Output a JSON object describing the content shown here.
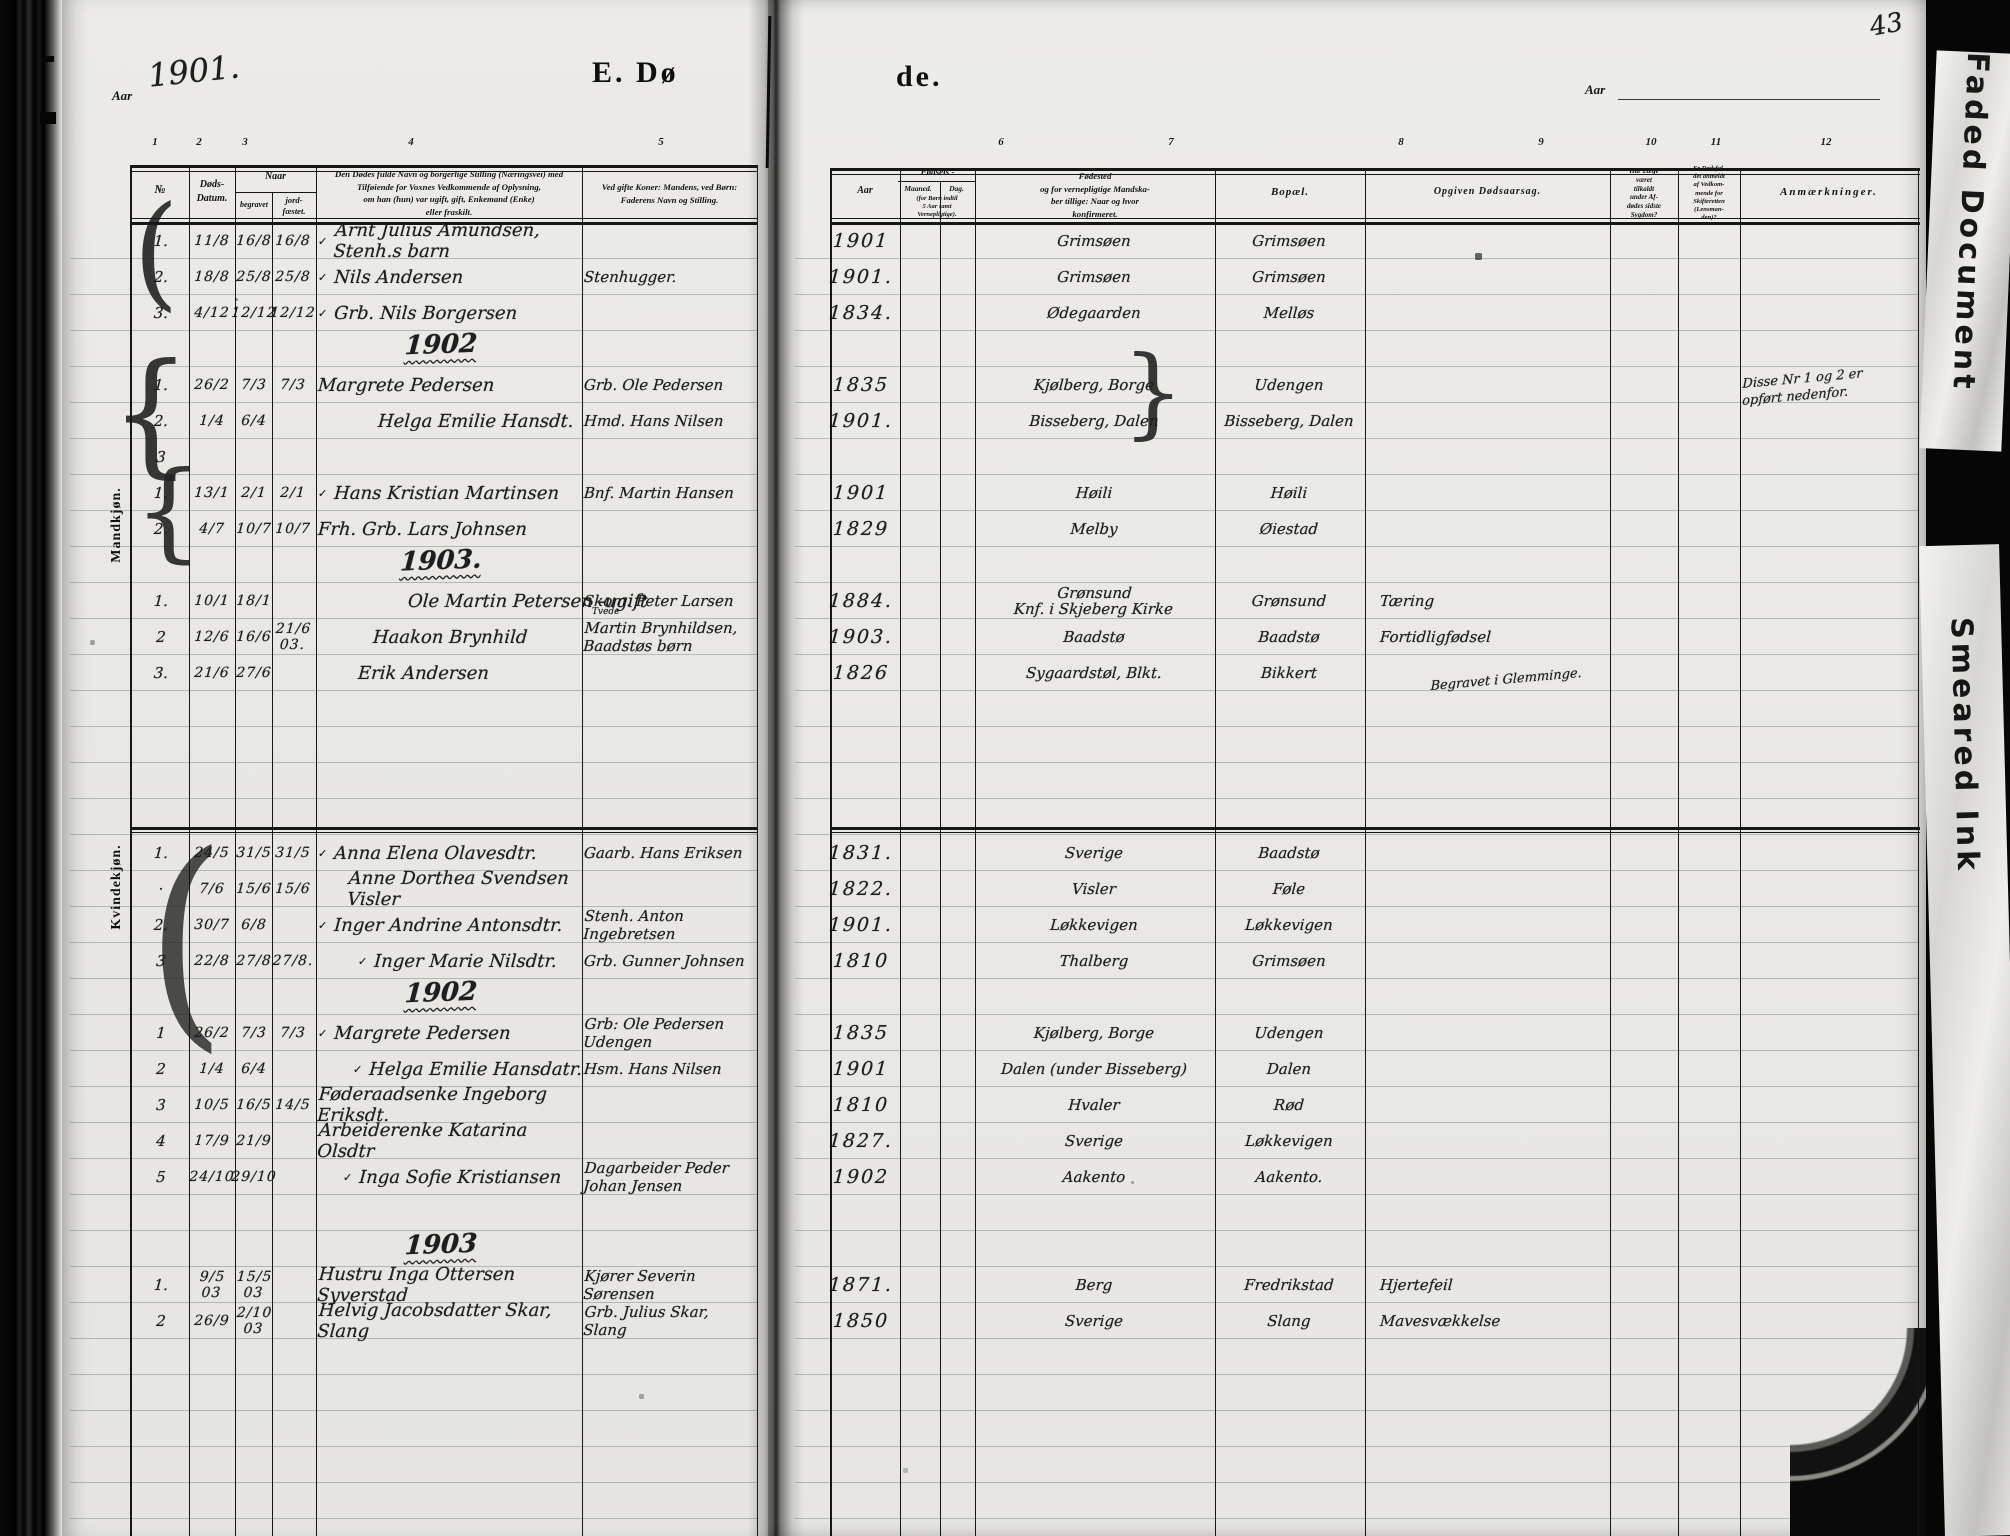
{
  "top": {
    "aar_printed_left": "Aar",
    "year_handwritten": "1901.",
    "title_left": "E. Dø",
    "title_right": "de.",
    "aar_printed_right": "Aar",
    "page_number": "43"
  },
  "column_numbers": [
    "1",
    "2",
    "3",
    "4",
    "5",
    "6",
    "7",
    "8",
    "9",
    "10",
    "11",
    "12"
  ],
  "headers": {
    "nr": "№",
    "dods": "Døds-\nDatum.",
    "naar": "Naar",
    "begravet": "begravet",
    "jordfaestet": "jord-\nfæstet.",
    "col4": "Den Dødes fulde Navn og borgerlige Stilling (Næringsvei) med\nTilføiende for Voxnes Vedkommende af Oplysning,\nom han (hun) var ugift, gift, Enkemand (Enke)\neller fraskilt.",
    "col5": "Ved gifte Koner: Mandens, ved Børn:\nFaderens Navn og Stilling.",
    "aar": "Aar",
    "fodsels": "Fødsels -",
    "maaned": "Maaned.",
    "dag": "Dag.",
    "forborn": "(for Børn indtil\n5 Aar samt\nVernepligtige).",
    "col7": "Fødested\nog for vernepligtige Mandska-\nber tillige: Naar og hvor\nkonfirmeret.",
    "col8": "Bopæl.",
    "col9": "Opgiven Dødsaarsag.",
    "col10": "Har Læge\nværet\ntilkaldt\nunder Af-\ndødes sidste\nSygdom?",
    "col11": "Er Dødsfal-\ndet anmeldt\naf Vedkom-\nmende for\nSkifteretten\n(Lensman-\nden)?",
    "col12": "Anmærkninger."
  },
  "sections": {
    "male": "Mandkjøn.",
    "female": "Kvindekjøn."
  },
  "marks": {
    "check": "✓"
  },
  "overlays": {
    "strip_top": "Faded Document",
    "strip_bottom": "Smeared Ink"
  },
  "rows": [
    {
      "t": "e",
      "nr": "1.",
      "dat": "11/8",
      "beg": "16/8",
      "jor": "16/8",
      "chk": true,
      "nav": "Arnt Julius Amundsen, Stenh.s barn",
      "aar": "1901",
      "sted": "Grimsøen",
      "bop": "Grimsøen"
    },
    {
      "t": "e",
      "nr": "2.",
      "dat": "18/8",
      "beg": "25/8",
      "jor": "25/8",
      "chk": true,
      "nav": "Nils Andersen",
      "rel": "Stenhugger.",
      "aar": "1901.",
      "sted": "Grimsøen",
      "bop": "Grimsøen"
    },
    {
      "t": "e",
      "nr": "3.",
      "dat": "4/12",
      "beg": "12/12",
      "jor": "12/12",
      "chk": true,
      "nav": "Grb. Nils Borgersen",
      "aar": "1834.",
      "sted": "Ødegaarden",
      "bop": "Melløs"
    },
    {
      "t": "h",
      "hed": "1902"
    },
    {
      "t": "e",
      "nr": "1.",
      "dat": "26/2",
      "beg": "7/3",
      "jor": "7/3",
      "nav": "Margrete Pedersen",
      "rel": "Grb. Ole Pedersen",
      "aar": "1835",
      "sted": "Kjølberg, Borge",
      "bop": "Udengen",
      "anm": "Disse Nr 1 og 2 er\nopført nedenfor."
    },
    {
      "t": "e",
      "nr": "2.",
      "dat": "1/4",
      "beg": "6/4",
      "ind": 60,
      "nav": "Helga Emilie Hansdt.",
      "rel": "Hmd. Hans Nilsen",
      "aar": "1901.",
      "sted": "Bisseberg, Dalen",
      "bop": "Bisseberg, Dalen"
    },
    {
      "t": "e",
      "nr": "3"
    },
    {
      "t": "e",
      "nr": "1.",
      "dat": "13/1",
      "beg": "2/1",
      "jor": "2/1",
      "chk": true,
      "nav": "Hans Kristian Martinsen",
      "rel": "Bnf. Martin Hansen",
      "aar": "1901",
      "sted": "Høili",
      "bop": "Høili"
    },
    {
      "t": "e",
      "nr": "2.",
      "dat": "4/7",
      "beg": "10/7",
      "jor": "10/7",
      "nav": "Frh. Grb. Lars Johnsen",
      "aar": "1829",
      "sted": "Melby",
      "bop": "Øiestad"
    },
    {
      "t": "h",
      "hed": "1903."
    },
    {
      "t": "e",
      "nr": "1.",
      "dat": "10/1",
      "beg": "18/1",
      "ind": 90,
      "nav": "Ole Martin Petersen  -ugift",
      "rel": "Skom. Peter Larsen",
      "note": "Tvede",
      "aar": "1884.",
      "sted": "Grønsund\nKnf. i Skjeberg Kirke",
      "bop": "Grønsund",
      "cau": "Tæring"
    },
    {
      "t": "e",
      "nr": "2",
      "dat": "12/6",
      "beg": "16/6",
      "jor": "21/6 03.",
      "ind": 55,
      "nav": "Haakon Brynhild",
      "rel": "Martin Brynhildsen, Baadstøs børn",
      "aar": "1903.",
      "sted": "Baadstø",
      "bop": "Baadstø",
      "cau": "Fortidligfødsel"
    },
    {
      "t": "e",
      "nr": "3.",
      "dat": "21/6",
      "beg": "27/6",
      "ind": 40,
      "nav": "Erik Andersen",
      "aar": "1826",
      "sted": "Sygaardstøl, Blkt.",
      "bop": "Bikkert",
      "anm": "Begravet i Glemminge."
    },
    {
      "t": "b"
    },
    {
      "t": "b"
    },
    {
      "t": "b"
    },
    {
      "t": "b"
    },
    {
      "t": "e",
      "nr": "1.",
      "dat": "24/5",
      "beg": "31/5",
      "jor": "31/5",
      "chk": true,
      "nav": "Anna Elena Olavesdtr.",
      "rel": "Gaarb. Hans Eriksen",
      "aar": "1831.",
      "sted": "Sverige",
      "bop": "Baadstø"
    },
    {
      "t": "e",
      "nr": "·",
      "dat": "7/6",
      "beg": "15/6",
      "jor": "15/6",
      "ind": 30,
      "nav": "Anne Dorthea Svendsen Visler",
      "aar": "1822.",
      "sted": "Visler",
      "bop": "Føle"
    },
    {
      "t": "e",
      "nr": "2.",
      "dat": "30/7",
      "beg": "6/8",
      "chk": true,
      "nav": "Inger Andrine Antonsdtr.",
      "rel": "Stenh. Anton Ingebretsen",
      "aar": "1901.",
      "sted": "Løkkevigen",
      "bop": "Løkkevigen"
    },
    {
      "t": "e",
      "nr": "3",
      "dat": "22/8",
      "beg": "27/8",
      "jor": "27/8.",
      "chk": true,
      "ind": 40,
      "nav": "Inger Marie Nilsdtr.",
      "rel": "Grb. Gunner Johnsen",
      "aar": "1810",
      "sted": "Thalberg",
      "bop": "Grimsøen"
    },
    {
      "t": "h",
      "hed": "1902"
    },
    {
      "t": "e",
      "nr": "1",
      "dat": "26/2",
      "beg": "7/3",
      "jor": "7/3",
      "chk": true,
      "nav": "Margrete Pedersen",
      "rel": "Grb: Ole Pedersen Udengen",
      "aar": "1835",
      "sted": "Kjølberg, Borge",
      "bop": "Udengen"
    },
    {
      "t": "e",
      "nr": "2",
      "dat": "1/4",
      "beg": "6/4",
      "chk": true,
      "ind": 35,
      "nav": "Helga Emilie Hansdatr.",
      "rel": "Hsm. Hans Nilsen",
      "aar": "1901",
      "sted": "Dalen (under Bisseberg)",
      "bop": "Dalen"
    },
    {
      "t": "e",
      "nr": "3",
      "dat": "10/5",
      "beg": "16/5",
      "jor": "14/5",
      "nav": "Føderaadsenke Ingeborg Eriksdt.",
      "aar": "1810",
      "sted": "Hvaler",
      "bop": "Rød"
    },
    {
      "t": "e",
      "nr": "4",
      "dat": "17/9",
      "beg": "21/9",
      "nav": "Arbeiderenke Katarina Olsdtr",
      "aar": "1827.",
      "sted": "Sverige",
      "bop": "Løkkevigen"
    },
    {
      "t": "e",
      "nr": "5",
      "dat": "24/10",
      "beg": "29/10",
      "chk": true,
      "ind": 25,
      "nav": "Inga Sofie Kristiansen",
      "rel": "Dagarbeider Peder Johan Jensen",
      "aar": "1902",
      "sted": "Aakento",
      "bop": "Aakento."
    },
    {
      "t": "b"
    },
    {
      "t": "h",
      "hed": "1903"
    },
    {
      "t": "e",
      "nr": "1.",
      "dat": "9/5 03",
      "beg": "15/5 03",
      "nav": "Hustru Inga Ottersen Syverstad",
      "rel": "Kjører Severin Sørensen",
      "aar": "1871.",
      "sted": "Berg",
      "bop": "Fredrikstad",
      "cau": "Hjertefeil"
    },
    {
      "t": "e",
      "nr": "2",
      "dat": "26/9",
      "beg": "2/10 03",
      "nav": "Helvig Jacobsdatter Skar, Slang",
      "rel": "Grb. Julius Skar, Slang",
      "aar": "1850",
      "sted": "Sverige",
      "bop": "Slang",
      "cau": "Mavesvækkelse"
    }
  ]
}
